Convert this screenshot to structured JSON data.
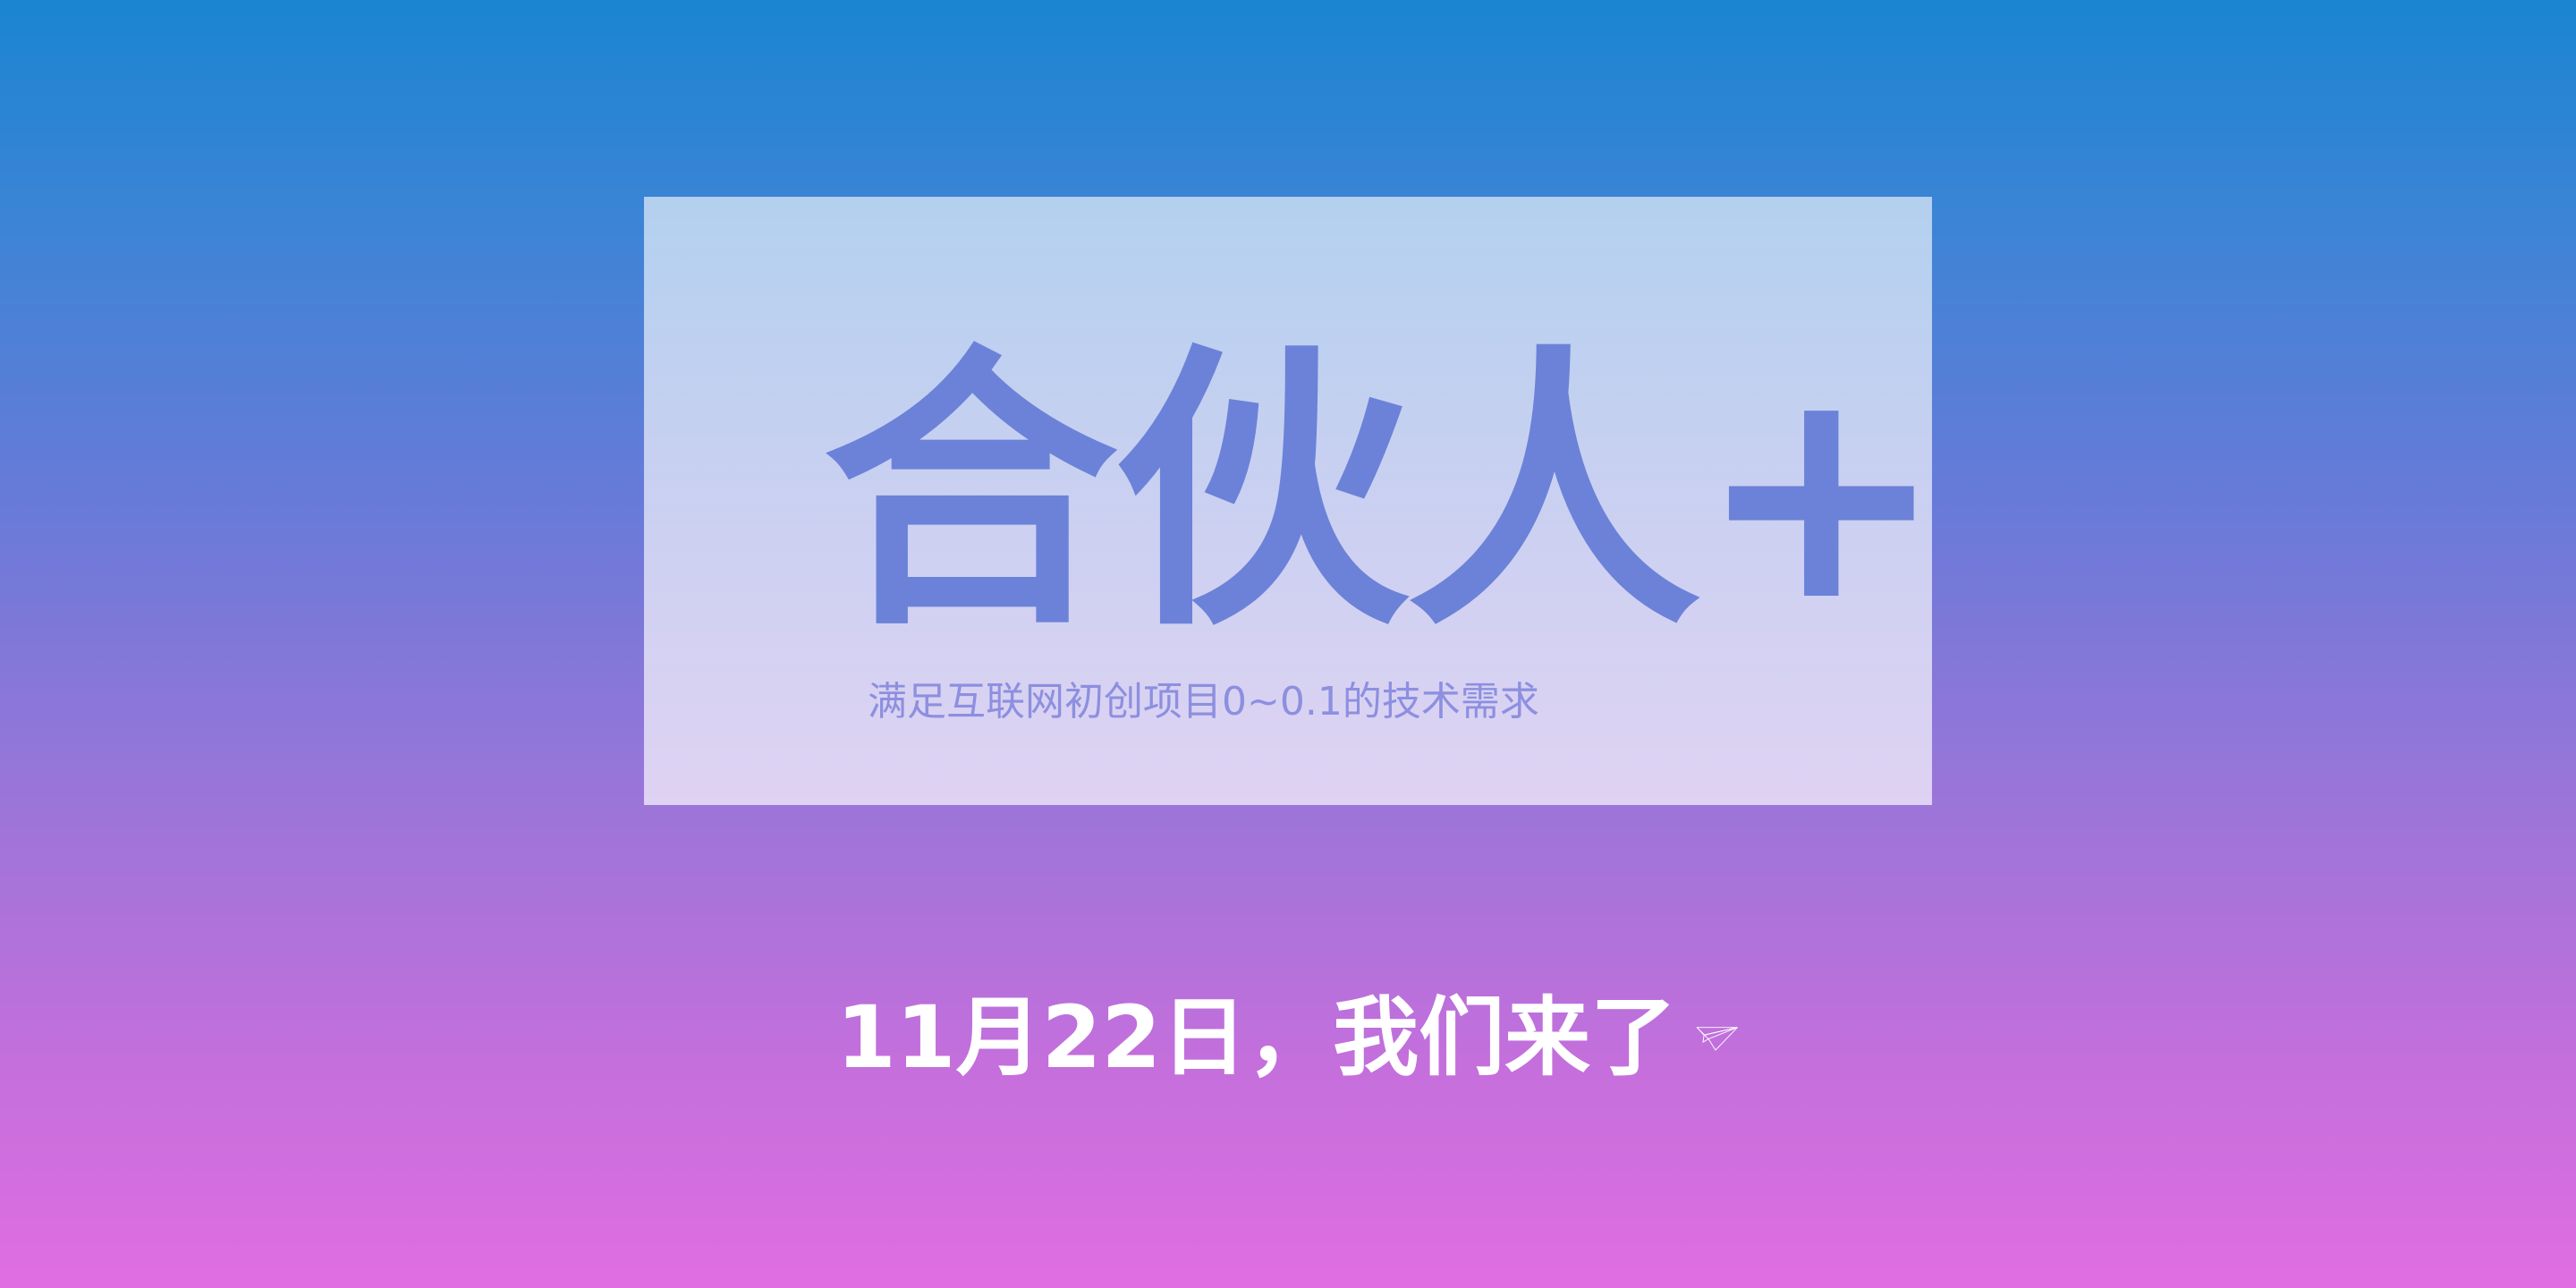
{
  "hero": {
    "title": "合伙人+",
    "tagline": "满足互联网初创项目0~0.1的技术需求"
  },
  "announcement": {
    "text": "11月22日，我们来了",
    "icon": "paper-plane-icon"
  },
  "colors": {
    "background_top": "#1a85d2",
    "background_bottom": "#e06ee2",
    "title": "#6b82d8",
    "tagline": "#8d8fe0",
    "announcement": "#ffffff"
  }
}
